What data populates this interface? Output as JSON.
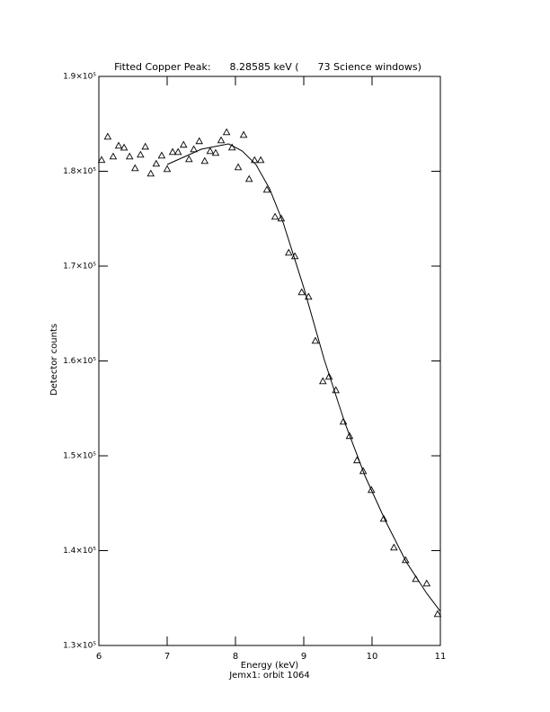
{
  "chart_data": {
    "type": "scatter",
    "title": "Fitted Copper Peak:      8.28585 keV (      73 Science windows)",
    "x_label": "Energy (keV)",
    "y_label": "Detector counts",
    "subtitle": "Jemx1: orbit 1064",
    "xlim": [
      6,
      11
    ],
    "xticks": [
      6,
      7,
      8,
      9,
      10,
      11
    ],
    "ylim": [
      130000,
      190000
    ],
    "yticks": [
      {
        "value": 130000,
        "label": "1.3×10⁵"
      },
      {
        "value": 140000,
        "label": "1.4×10⁵"
      },
      {
        "value": 150000,
        "label": "1.5×10⁵"
      },
      {
        "value": 160000,
        "label": "1.6×10⁵"
      },
      {
        "value": 170000,
        "label": "1.7×10⁵"
      },
      {
        "value": 180000,
        "label": "1.8×10⁵"
      },
      {
        "value": 190000,
        "label": "1.9×10⁵"
      }
    ],
    "grid": false,
    "series": [
      {
        "marker": "triangle",
        "color": "#000000",
        "x": [
          6.04,
          6.13,
          6.21,
          6.29,
          6.37,
          6.45,
          6.53,
          6.61,
          6.68,
          6.76,
          6.84,
          6.92,
          7.0,
          7.08,
          7.16,
          7.24,
          7.32,
          7.39,
          7.47,
          7.55,
          7.63,
          7.71,
          7.79,
          7.87,
          7.95,
          8.04,
          8.12,
          8.2,
          8.28,
          8.37,
          8.46,
          8.58,
          8.67,
          8.78,
          8.87,
          8.97,
          9.07,
          9.17,
          9.28,
          9.37,
          9.47,
          9.58,
          9.67,
          9.78,
          9.87,
          9.99,
          10.17,
          10.32,
          10.49,
          10.64,
          10.8,
          10.96
        ],
        "values": [
          181200,
          183650,
          181560,
          182700,
          182500,
          181560,
          180330,
          181750,
          182600,
          179760,
          180800,
          181660,
          180240,
          182040,
          182040,
          182800,
          181280,
          182320,
          183180,
          181090,
          182130,
          181940,
          183270,
          184120,
          182510,
          180430,
          183840,
          179190,
          181180,
          181180,
          178060,
          175210,
          175020,
          171420,
          171040,
          167250,
          166780,
          162130,
          157870,
          158340,
          156920,
          153600,
          152090,
          149530,
          148390,
          146400,
          143360,
          140330,
          139000,
          137010,
          136540,
          133320
        ]
      },
      {
        "marker": "line",
        "color": "#000000",
        "x": [
          7.0,
          7.5,
          7.9,
          8.1,
          8.3,
          8.5,
          8.7,
          9.0,
          9.3,
          9.6,
          9.9,
          10.2,
          10.5,
          10.8,
          11.0
        ],
        "values": [
          180710,
          182320,
          182890,
          182130,
          180710,
          178150,
          174550,
          167730,
          160140,
          153510,
          147820,
          143080,
          138820,
          135500,
          133600
        ]
      }
    ]
  }
}
